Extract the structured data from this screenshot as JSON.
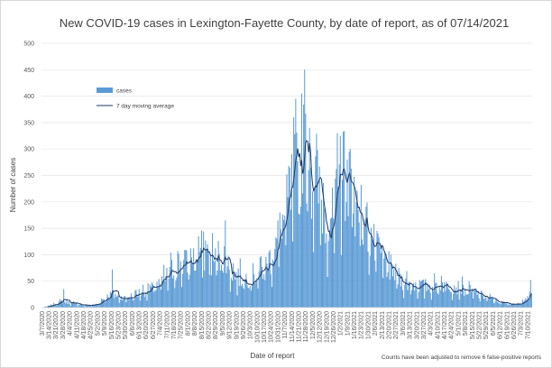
{
  "chart_data": {
    "type": "bar",
    "title": "New COVID-19 cases in Lexington-Fayette County, by date of report, as of 07/14/2021",
    "xlabel": "Date of report",
    "ylabel": "Number of cases",
    "ylim": [
      0,
      500
    ],
    "y_ticks": [
      "0",
      "50",
      "100",
      "150",
      "200",
      "250",
      "300",
      "350",
      "400",
      "450",
      "500"
    ],
    "grid": true,
    "legend_position": "upper-left",
    "x_start_date": "3/7/2020",
    "x_end_date": "7/14/2021",
    "x_tick_labels": [
      "3/7/2020",
      "3/14/2020",
      "3/21/2020",
      "3/28/2020",
      "4/4/2020",
      "4/11/2020",
      "4/18/2020",
      "4/25/2020",
      "5/2/2020",
      "5/9/2020",
      "5/16/2020",
      "5/23/2020",
      "5/30/2020",
      "6/6/2020",
      "6/13/2020",
      "6/20/2020",
      "6/27/2020",
      "7/4/2020",
      "7/11/2020",
      "7/18/2020",
      "7/25/2020",
      "8/1/2020",
      "8/8/2020",
      "8/15/2020",
      "8/22/2020",
      "8/29/2020",
      "9/5/2020",
      "9/12/2020",
      "9/19/2020",
      "9/26/2020",
      "10/3/2020",
      "10/10/2020",
      "10/17/2020",
      "10/24/2020",
      "10/31/2020",
      "11/7/2020",
      "11/14/2020",
      "11/21/2020",
      "11/28/2020",
      "12/5/2020",
      "12/12/2020",
      "12/19/2020",
      "12/26/2020",
      "1/2/2021",
      "1/9/2021",
      "1/16/2021",
      "1/23/2021",
      "1/30/2021",
      "2/6/2021",
      "2/13/2021",
      "2/20/2021",
      "2/27/2021",
      "3/6/2021",
      "3/13/2021",
      "3/20/2021",
      "3/27/2021",
      "4/3/2021",
      "4/10/2021",
      "4/17/2021",
      "4/24/2021",
      "5/1/2021",
      "5/8/2021",
      "5/15/2021",
      "5/22/2021",
      "5/29/2021",
      "6/5/2021",
      "6/12/2021",
      "6/19/2021",
      "6/26/2021",
      "7/3/2021",
      "7/10/2021"
    ],
    "series": [
      {
        "name": "cases",
        "kind": "bar",
        "color": "#5b9bd5"
      },
      {
        "name": "7 day moving average",
        "kind": "line",
        "color": "#1f3864"
      }
    ],
    "trend": [
      [
        "3/7/2020",
        0
      ],
      [
        "3/14/2020",
        3
      ],
      [
        "3/21/2020",
        8
      ],
      [
        "3/28/2020",
        12
      ],
      [
        "4/4/2020",
        9
      ],
      [
        "4/11/2020",
        7
      ],
      [
        "4/18/2020",
        5
      ],
      [
        "4/25/2020",
        4
      ],
      [
        "5/2/2020",
        7
      ],
      [
        "5/9/2020",
        18
      ],
      [
        "5/16/2020",
        25
      ],
      [
        "5/23/2020",
        20
      ],
      [
        "5/30/2020",
        18
      ],
      [
        "6/6/2020",
        22
      ],
      [
        "6/13/2020",
        28
      ],
      [
        "6/20/2020",
        32
      ],
      [
        "6/27/2020",
        38
      ],
      [
        "7/4/2020",
        45
      ],
      [
        "7/11/2020",
        58
      ],
      [
        "7/18/2020",
        75
      ],
      [
        "7/25/2020",
        85
      ],
      [
        "8/1/2020",
        82
      ],
      [
        "8/8/2020",
        100
      ],
      [
        "8/15/2020",
        110
      ],
      [
        "8/22/2020",
        95
      ],
      [
        "8/29/2020",
        90
      ],
      [
        "9/5/2020",
        105
      ],
      [
        "9/12/2020",
        75
      ],
      [
        "9/19/2020",
        60
      ],
      [
        "9/26/2020",
        55
      ],
      [
        "10/3/2020",
        58
      ],
      [
        "10/10/2020",
        65
      ],
      [
        "10/17/2020",
        75
      ],
      [
        "10/24/2020",
        95
      ],
      [
        "10/31/2020",
        130
      ],
      [
        "11/7/2020",
        170
      ],
      [
        "11/14/2020",
        220
      ],
      [
        "11/21/2020",
        275
      ],
      [
        "11/28/2020",
        290
      ],
      [
        "12/5/2020",
        250
      ],
      [
        "12/12/2020",
        215
      ],
      [
        "12/19/2020",
        170
      ],
      [
        "12/26/2020",
        165
      ],
      [
        "1/2/2021",
        240
      ],
      [
        "1/9/2021",
        265
      ],
      [
        "1/16/2021",
        220
      ],
      [
        "1/23/2021",
        180
      ],
      [
        "1/30/2021",
        150
      ],
      [
        "2/6/2021",
        110
      ],
      [
        "2/13/2021",
        95
      ],
      [
        "2/20/2021",
        78
      ],
      [
        "2/27/2021",
        60
      ],
      [
        "3/6/2021",
        50
      ],
      [
        "3/13/2021",
        45
      ],
      [
        "3/20/2021",
        42
      ],
      [
        "3/27/2021",
        40
      ],
      [
        "4/3/2021",
        40
      ],
      [
        "4/10/2021",
        42
      ],
      [
        "4/17/2021",
        44
      ],
      [
        "4/24/2021",
        42
      ],
      [
        "5/1/2021",
        38
      ],
      [
        "5/8/2021",
        35
      ],
      [
        "5/15/2021",
        30
      ],
      [
        "5/22/2021",
        25
      ],
      [
        "5/29/2021",
        20
      ],
      [
        "6/5/2021",
        15
      ],
      [
        "6/12/2021",
        10
      ],
      [
        "6/19/2021",
        8
      ],
      [
        "6/26/2021",
        7
      ],
      [
        "7/3/2021",
        10
      ],
      [
        "7/10/2021",
        20
      ],
      [
        "7/14/2021",
        25
      ]
    ],
    "spikes": [
      [
        "3/29/2020",
        35
      ],
      [
        "5/17/2020",
        72
      ],
      [
        "8/21/2020",
        120
      ],
      [
        "9/8/2020",
        165
      ],
      [
        "11/16/2020",
        360
      ],
      [
        "11/24/2020",
        405
      ],
      [
        "11/27/2020",
        450
      ],
      [
        "12/2/2020",
        340
      ],
      [
        "12/30/2020",
        330
      ],
      [
        "1/2/2021",
        325
      ],
      [
        "1/9/2021",
        280
      ],
      [
        "4/14/2021",
        60
      ],
      [
        "7/13/2021",
        52
      ]
    ],
    "footnote": "Counts have been adjusted to remove 6 false-positive reports"
  }
}
